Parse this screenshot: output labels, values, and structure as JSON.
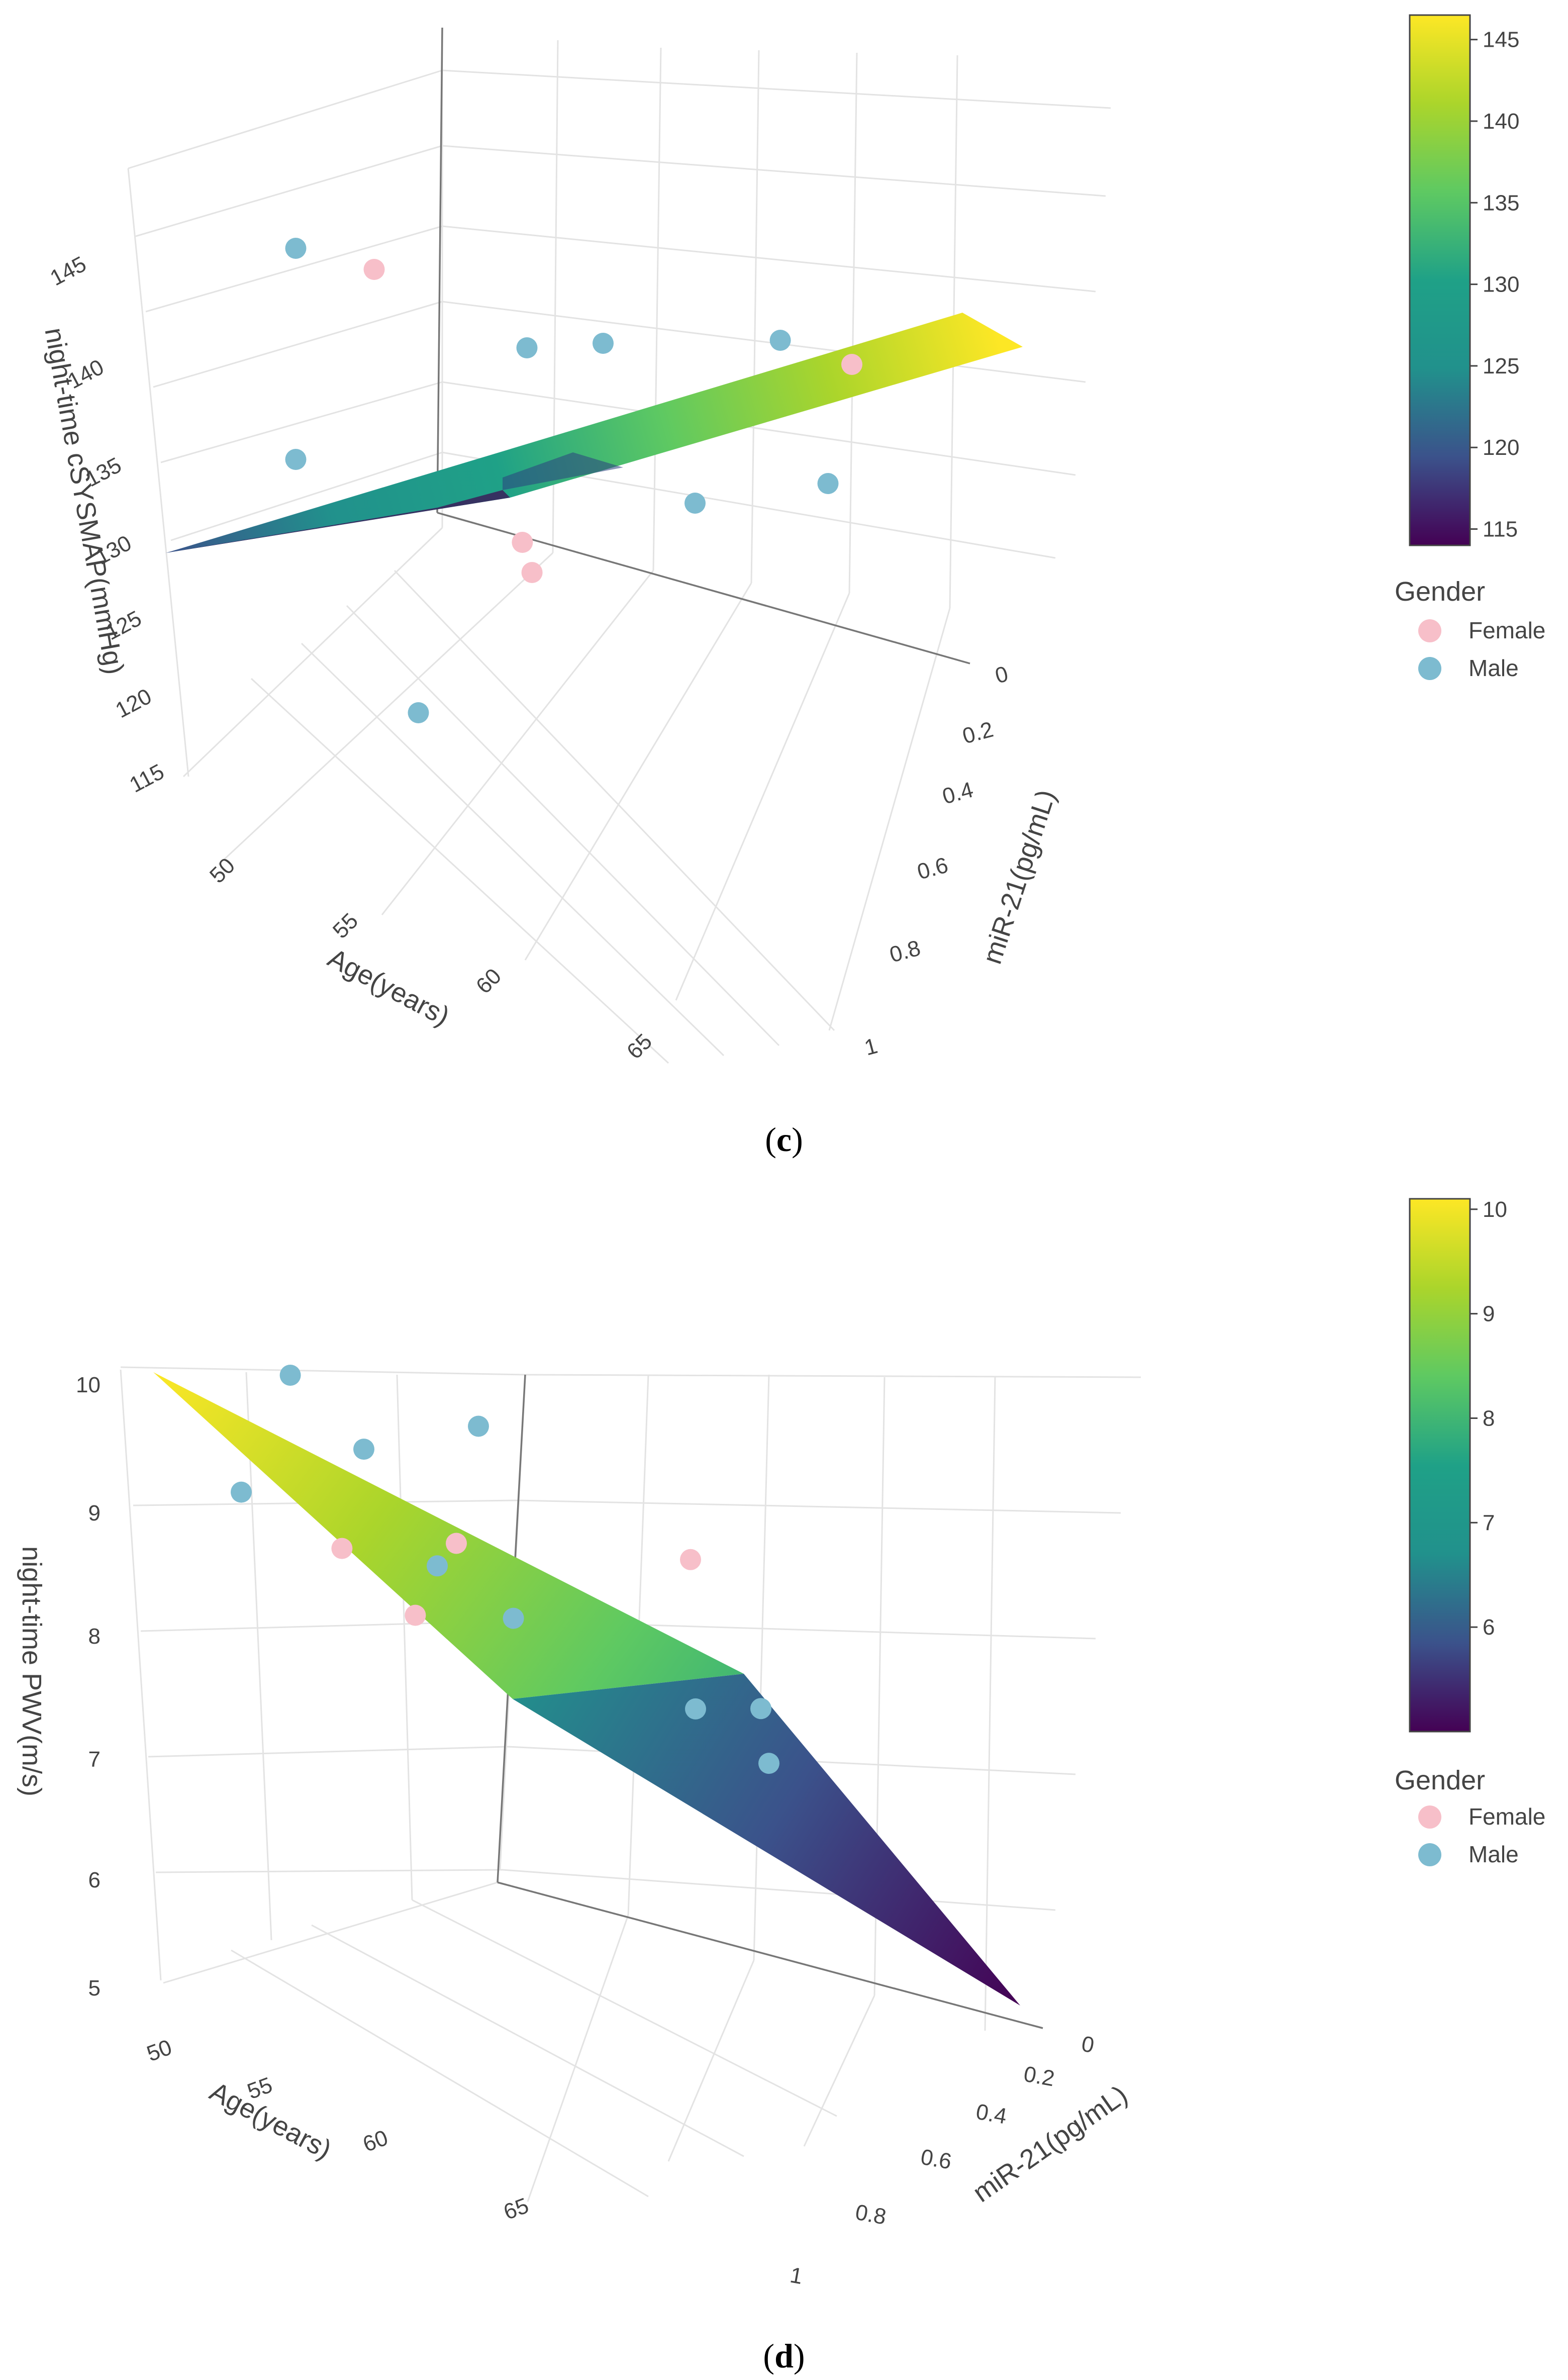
{
  "colors": {
    "female": "#F7BFC9",
    "male": "#7DBBD0",
    "grid": "#E3E3E3",
    "axis_line": "#777777",
    "text": "#444444",
    "viridis": [
      "#440154",
      "#3B528B",
      "#21918C",
      "#1FA187",
      "#5EC962",
      "#ABD52B",
      "#FDE725"
    ]
  },
  "chart_data": [
    {
      "type": "surface3d",
      "panel_label": "c",
      "zlabel": "night-time cSYSMAP(mmHg)",
      "xlabel": "Age(years)",
      "ylabel": "miR-21(pg/mL)",
      "z_ticks": [
        "115",
        "120",
        "125",
        "130",
        "135",
        "140",
        "145"
      ],
      "x_ticks": [
        "50",
        "55",
        "60",
        "65"
      ],
      "y_ticks": [
        "0",
        "0.2",
        "0.4",
        "0.6",
        "0.8",
        "1"
      ],
      "colorbar": {
        "min": 114,
        "max": 146.5,
        "ticks": [
          "115",
          "120",
          "125",
          "130",
          "135",
          "140",
          "145"
        ]
      },
      "legend": {
        "title": "Gender",
        "items": [
          "Female",
          "Male"
        ]
      },
      "points": [
        {
          "gender": "Male",
          "age": 59.5,
          "mir21": 0.05,
          "value": 146
        },
        {
          "gender": "Female",
          "age": 56.5,
          "mir21": 0.05,
          "value": 141
        },
        {
          "gender": "Male",
          "age": 55,
          "mir21": 0.25,
          "value": 136
        },
        {
          "gender": "Male",
          "age": 63.5,
          "mir21": 0.45,
          "value": 124
        },
        {
          "gender": "Female",
          "age": 58,
          "mir21": 0.38,
          "value": 128
        },
        {
          "gender": "Female",
          "age": 58.5,
          "mir21": 0.42,
          "value": 127
        },
        {
          "gender": "Male",
          "age": 54,
          "mir21": 0.5,
          "value": 127
        },
        {
          "gender": "Male",
          "age": 51,
          "mir21": 0.2,
          "value": 131
        },
        {
          "gender": "Male",
          "age": 49,
          "mir21": 0.42,
          "value": 131
        },
        {
          "gender": "Female",
          "age": 48,
          "mir21": 0.5,
          "value": 129
        },
        {
          "gender": "Male",
          "age": 50,
          "mir21": 0.55,
          "value": 124
        },
        {
          "gender": "Male",
          "age": 59.5,
          "mir21": 0.05,
          "value": 132
        }
      ]
    },
    {
      "type": "surface3d",
      "panel_label": "d",
      "zlabel": "night-time PWV(m/s)",
      "xlabel": "Age(years)",
      "ylabel": "miR-21(pg/mL)",
      "z_ticks": [
        "5",
        "6",
        "7",
        "8",
        "9",
        "10"
      ],
      "x_ticks": [
        "50",
        "55",
        "60",
        "65"
      ],
      "y_ticks": [
        "0",
        "0.2",
        "0.4",
        "0.6",
        "0.8",
        "1"
      ],
      "colorbar": {
        "min": 5,
        "max": 10.1,
        "ticks": [
          "6",
          "7",
          "8",
          "9",
          "10"
        ]
      },
      "legend": {
        "title": "Gender",
        "items": [
          "Female",
          "Male"
        ]
      },
      "points": [
        {
          "gender": "Male",
          "age": 61,
          "mir21": 0.02,
          "value": 10.1
        },
        {
          "gender": "Male",
          "age": 58,
          "mir21": 0.05,
          "value": 9.3
        },
        {
          "gender": "Male",
          "age": 63,
          "mir21": 0.0,
          "value": 9.3
        },
        {
          "gender": "Female",
          "age": 60,
          "mir21": 0.08,
          "value": 8.7
        },
        {
          "gender": "Female",
          "age": 56,
          "mir21": 0.15,
          "value": 8.5
        },
        {
          "gender": "Male",
          "age": 57,
          "mir21": 0.15,
          "value": 8.4
        },
        {
          "gender": "Female",
          "age": 59,
          "mir21": 0.18,
          "value": 8.2
        },
        {
          "gender": "Male",
          "age": 55,
          "mir21": 0.22,
          "value": 7.9
        },
        {
          "gender": "Male",
          "age": 52,
          "mir21": 0.05,
          "value": 9.0
        },
        {
          "gender": "Female",
          "age": 48,
          "mir21": 0.3,
          "value": 7.9
        },
        {
          "gender": "Male",
          "age": 52,
          "mir21": 0.45,
          "value": 7.2
        },
        {
          "gender": "Male",
          "age": 50,
          "mir21": 0.5,
          "value": 7.1
        },
        {
          "gender": "Male",
          "age": 51,
          "mir21": 0.55,
          "value": 6.8
        }
      ]
    }
  ]
}
